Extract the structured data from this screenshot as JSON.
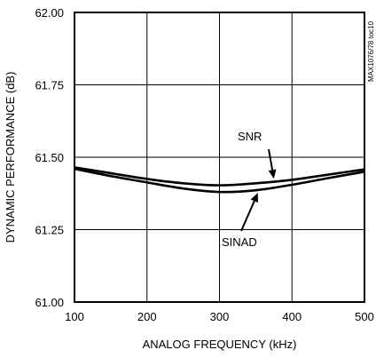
{
  "chart_data": {
    "type": "line",
    "title": "",
    "xlabel": "ANALOG FREQUENCY (kHz)",
    "ylabel": "DYNAMIC PERFORMANCE (dB)",
    "xlim": [
      100,
      500
    ],
    "ylim": [
      61.0,
      62.0
    ],
    "x_ticks": [
      100,
      200,
      300,
      400,
      500
    ],
    "y_ticks": [
      "61.00",
      "61.25",
      "61.50",
      "61.75",
      "62.00"
    ],
    "grid": true,
    "series": [
      {
        "name": "SNR",
        "x": [
          100,
          150,
          200,
          250,
          300,
          350,
          400,
          450,
          500
        ],
        "y": [
          61.465,
          61.445,
          61.425,
          61.41,
          61.403,
          61.41,
          61.422,
          61.44,
          61.458
        ]
      },
      {
        "name": "SINAD",
        "x": [
          100,
          150,
          200,
          250,
          300,
          350,
          400,
          450,
          500
        ],
        "y": [
          61.46,
          61.435,
          61.413,
          61.392,
          61.38,
          61.386,
          61.405,
          61.428,
          61.45
        ]
      }
    ],
    "annotations": [
      {
        "label": "SNR",
        "series": "SNR"
      },
      {
        "label": "SINAD",
        "series": "SINAD"
      }
    ],
    "watermark": "MAX1076/78 toc10"
  },
  "colors": {
    "line": "#000000",
    "grid": "#000000",
    "background": "#ffffff"
  }
}
